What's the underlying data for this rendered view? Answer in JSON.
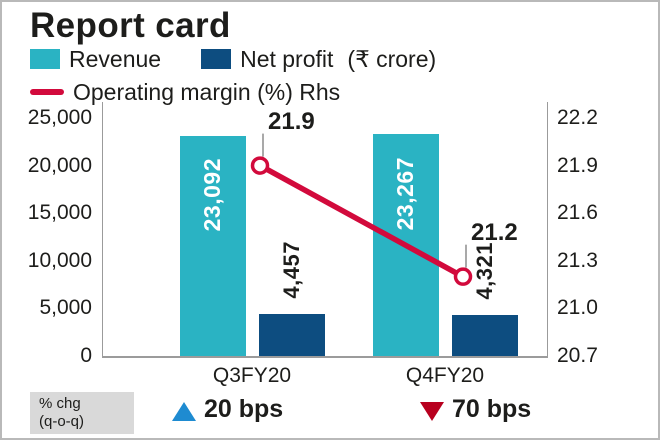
{
  "title": "Report card",
  "legend": {
    "revenue": "Revenue",
    "net_profit": "Net profit",
    "unit": "(₹ crore)",
    "operating_margin": "Operating margin (%) Rhs"
  },
  "footer": {
    "label_line1": "% chg",
    "label_line2": "(q-o-q)",
    "up_value": "20 bps",
    "down_value": "70 bps"
  },
  "colors": {
    "revenue": "#2ab3c3",
    "net_profit": "#0d4d80",
    "margin_line": "#d20a3c",
    "up_triangle": "#1e8bd1",
    "down_triangle": "#b8001f"
  },
  "chart_data": {
    "type": "bar",
    "categories": [
      "Q3FY20",
      "Q4FY20"
    ],
    "series": [
      {
        "name": "Revenue",
        "type": "bar",
        "axis": "left",
        "values": [
          23092,
          23267
        ]
      },
      {
        "name": "Net profit",
        "type": "bar",
        "axis": "left",
        "values": [
          4457,
          4321
        ]
      },
      {
        "name": "Operating margin (%)",
        "type": "line",
        "axis": "right",
        "values": [
          21.9,
          21.2
        ]
      }
    ],
    "bar_labels": [
      [
        "23,092",
        "23,267"
      ],
      [
        "4,457",
        "4,321"
      ]
    ],
    "line_labels": [
      "21.9",
      "21.2"
    ],
    "left_axis": {
      "min": 0,
      "max": 25000,
      "ticks": [
        "25,000",
        "20,000",
        "15,000",
        "10,000",
        "5,000",
        "0"
      ]
    },
    "right_axis": {
      "min": 20.7,
      "max": 22.2,
      "ticks": [
        "22.2",
        "21.9",
        "21.6",
        "21.3",
        "21.0",
        "20.7"
      ]
    },
    "ylabel_left": "₹ crore",
    "ylabel_right": "Operating margin (%)",
    "legend_position": "top",
    "grid": false
  }
}
